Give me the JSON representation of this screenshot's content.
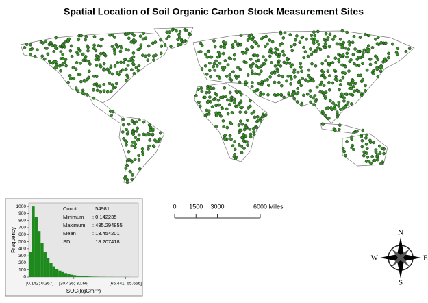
{
  "title": "Spatial Location of Soil Organic Carbon Stock Measurement Sites",
  "histogram": {
    "type": "histogram",
    "ylabel": "Frequency",
    "xlabel": "SOC(kgCm⁻²)",
    "bins": [
      0,
      2,
      4,
      6,
      8,
      10,
      12,
      14,
      16,
      18,
      20,
      22,
      24,
      26,
      28,
      30,
      32,
      34,
      36,
      38,
      40,
      42,
      44,
      46,
      48,
      50,
      52,
      54,
      56,
      58,
      60,
      62,
      64,
      66,
      68,
      70,
      72,
      74
    ],
    "values": [
      350,
      1000,
      850,
      650,
      480,
      360,
      270,
      200,
      150,
      115,
      90,
      70,
      55,
      42,
      33,
      26,
      20,
      16,
      12,
      10,
      8,
      6,
      5,
      4,
      3,
      3,
      2,
      2,
      2,
      1,
      1,
      1,
      1,
      1,
      0,
      0,
      0
    ],
    "color": "#1e8a1e",
    "xlim": [
      0,
      74
    ],
    "ylim": [
      0,
      1050
    ],
    "yticks": [
      0,
      100,
      200,
      300,
      400,
      500,
      600,
      700,
      800,
      900,
      1000
    ],
    "xticks": [
      {
        "value": 0.142,
        "label": "[0.142; 0.367]"
      },
      {
        "value": 30.436,
        "label": "[30.436; 30.66]"
      },
      {
        "value": 65.441,
        "label": "[65.441; 65.666]"
      }
    ],
    "stats": [
      {
        "label": "Count",
        "value": ": 54981"
      },
      {
        "label": "Minimum",
        "value": ": 0.142235"
      },
      {
        "label": "Maximum",
        "value": ": 435.294855"
      },
      {
        "label": "Mean",
        "value": ": 13.454201"
      },
      {
        "label": "SD",
        "value": ": 18.207418"
      }
    ]
  },
  "scale_bar": {
    "labels": [
      "0",
      "1500",
      "3000",
      "6000 Miles"
    ],
    "positions": [
      0,
      1500,
      3000,
      6000
    ]
  },
  "compass": {
    "north": "N",
    "south": "S",
    "east": "E",
    "west": "W"
  }
}
